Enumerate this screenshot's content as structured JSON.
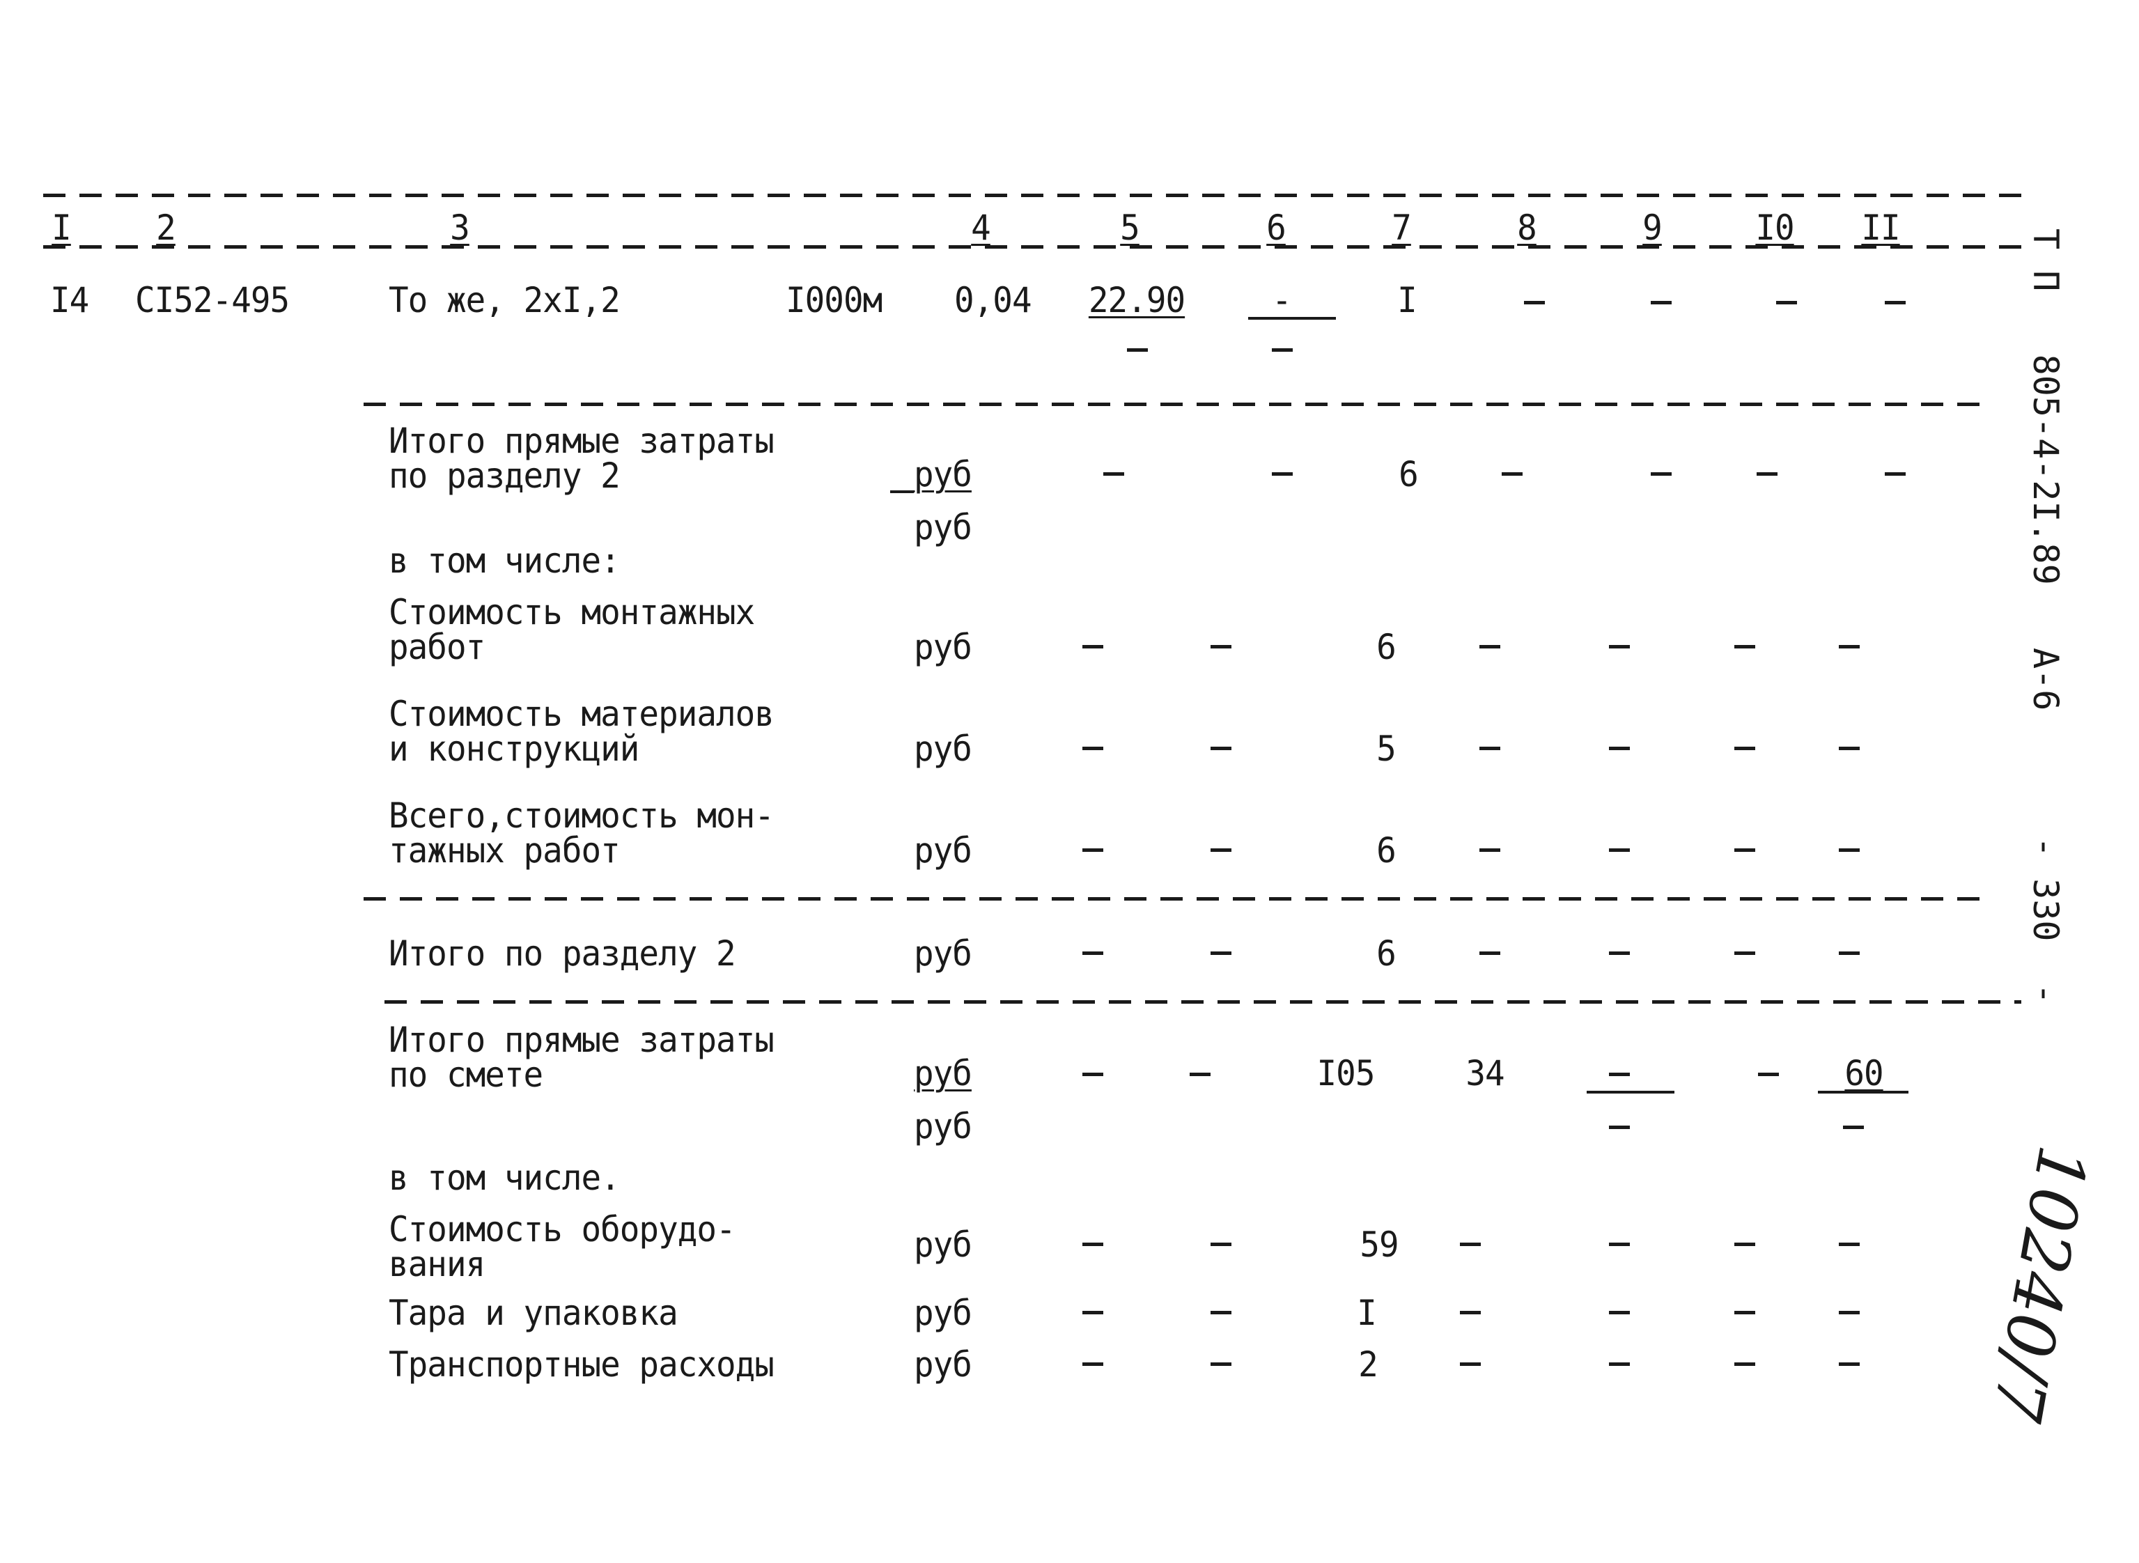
{
  "header": [
    "I",
    "2",
    "3",
    "4",
    "5",
    "6",
    "7",
    "8",
    "9",
    "I0",
    "II"
  ],
  "item": {
    "num": "I4",
    "code": "CI52-495",
    "name": "То же, 2хI,2",
    "unit": "I000м",
    "qty": "0,04",
    "price": "22.90",
    "col6": "-",
    "col7": "I",
    "dash": "-"
  },
  "section": {
    "direct_title_1": "Итого прямые затраты",
    "direct_title_2": "по разделу 2",
    "unit_rub": "руб",
    "direct_value": "6",
    "including": "в том числе:",
    "install_1": "Стоимость монтажных",
    "install_2": "работ",
    "install_value": "6",
    "materials_1": "Стоимость материалов",
    "materials_2": "и конструкций",
    "materials_value": "5",
    "total_install_1": "Всего,стоимость мон-",
    "total_install_2": "тажных работ",
    "total_install_value": "6",
    "total_label": "Итого по разделу 2",
    "total_value": "6"
  },
  "estimate": {
    "direct_title_1": "Итого прямые затраты",
    "direct_title_2": "по смете",
    "col7": "I05",
    "col8": "34",
    "col11": "60",
    "including": "в том числе.",
    "equip_1": "Стоимость оборудо-",
    "equip_2": "вания",
    "equip_value": "59",
    "pack_label": "Тара и упаковка",
    "pack_value": "I",
    "transport_label": "Транспортные расходы",
    "transport_value": "2"
  },
  "side": {
    "code": "Т П   805-4-2I.89   А-6      - 330  -",
    "handwritten": "10240/7"
  }
}
